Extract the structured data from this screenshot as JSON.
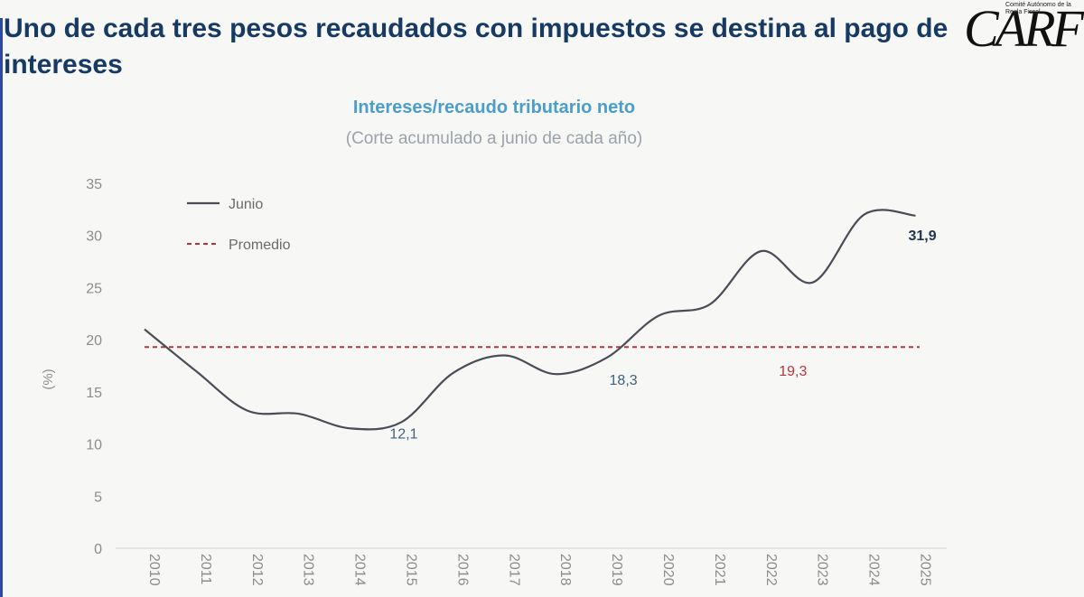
{
  "headline": "Uno de cada tres pesos recaudados con impuestos se destina al pago de intereses",
  "logo": {
    "mark": "CARF",
    "subtitle": "Comité Autónomo de la Regla Fiscal"
  },
  "chart_data": {
    "type": "line",
    "title": "Intereses/recaudo tributario neto",
    "subtitle": "(Corte acumulado a junio de cada año)",
    "ylabel": "(%)",
    "ylim": [
      0,
      35
    ],
    "yticks": [
      "0",
      "5",
      "10",
      "15",
      "20",
      "25",
      "30",
      "35"
    ],
    "categories": [
      "2010",
      "2011",
      "2012",
      "2013",
      "2014",
      "2015",
      "2016",
      "2017",
      "2018",
      "2019",
      "2020",
      "2021",
      "2022",
      "2023",
      "2024",
      "2025"
    ],
    "series": [
      {
        "name": "Junio",
        "color": "#4a4d57",
        "values": [
          21.0,
          17.0,
          13.2,
          12.9,
          11.5,
          12.1,
          16.8,
          18.5,
          16.7,
          18.3,
          22.3,
          23.4,
          28.5,
          25.5,
          32.0,
          31.9
        ]
      }
    ],
    "reference_line": {
      "name": "Promedio",
      "value": 19.3,
      "color": "#b8343c"
    },
    "annotations": [
      {
        "text": "12,1",
        "category": "2015",
        "color": "#3f6280"
      },
      {
        "text": "18,3",
        "category": "2019",
        "color": "#3f6280"
      },
      {
        "text": "19,3",
        "category": "2022",
        "color": "#b8343c"
      },
      {
        "text": "31,9",
        "category": "2025",
        "color": "#1e3550"
      }
    ],
    "legend": {
      "placement": "top-left"
    },
    "grid": false
  }
}
